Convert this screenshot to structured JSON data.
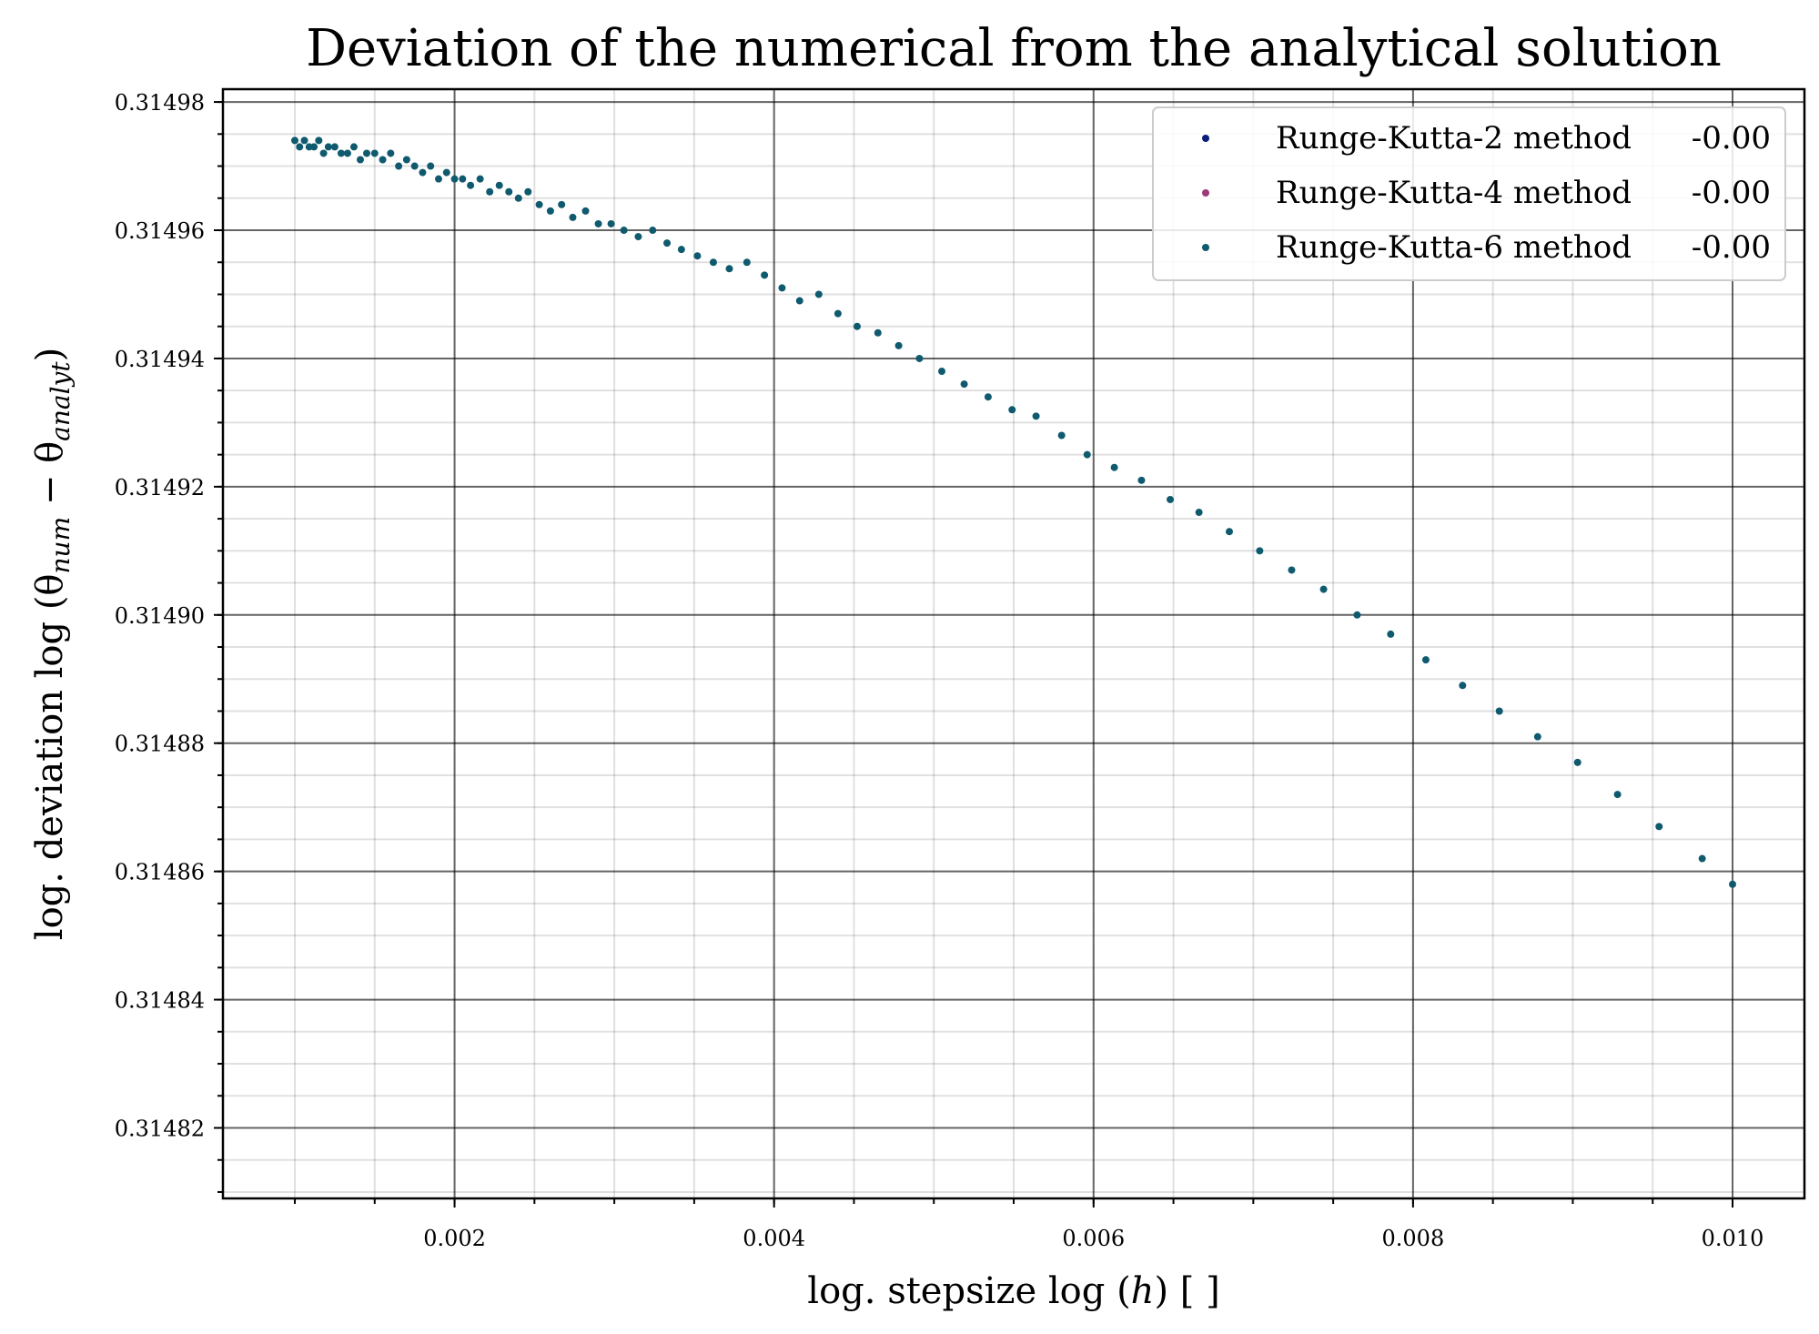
{
  "chart_data": {
    "type": "scatter",
    "title": "Deviation of the numerical from the analytical solution",
    "xlabel": "log. stepsize log (h) [ ]",
    "ylabel": "log. deviation log (θ_num − θ_analyt)",
    "ylabel_parts": {
      "prefix": "log. deviation log (θ",
      "sub1": "num",
      "middle": " − θ",
      "sub2": "analyt",
      "suffix": ")"
    },
    "xlabel_parts": {
      "prefix": "log. stepsize log (",
      "var": "h",
      "suffix": ") [ ]"
    },
    "xlim": [
      0.00055,
      0.01045
    ],
    "ylim": [
      0.314809,
      0.314982
    ],
    "x_ticks": [
      0.002,
      0.004,
      0.006,
      0.008,
      0.01
    ],
    "x_tick_labels": [
      "0.002",
      "0.004",
      "0.006",
      "0.008",
      "0.010"
    ],
    "y_ticks": [
      0.31482,
      0.31484,
      0.31486,
      0.31488,
      0.3149,
      0.31492,
      0.31494,
      0.31496,
      0.31498
    ],
    "y_tick_labels": [
      "0.31482",
      "0.31484",
      "0.31486",
      "0.31488",
      "0.31490",
      "0.31492",
      "0.31494",
      "0.31496",
      "0.31498"
    ],
    "grid": true,
    "legend_position": "top-right",
    "series": [
      {
        "name": "Runge-Kutta-2 method",
        "value_label": "-0.00",
        "color": "#0b1e7a",
        "x": [],
        "y": []
      },
      {
        "name": "Runge-Kutta-4 method",
        "value_label": "-0.00",
        "color": "#9b3a78",
        "x": [],
        "y": []
      },
      {
        "name": "Runge-Kutta-6 method",
        "value_label": "-0.00",
        "color": "#0f5a6e",
        "x": [
          0.001,
          0.00103,
          0.00106,
          0.00109,
          0.00112,
          0.00115,
          0.00118,
          0.00121,
          0.00125,
          0.00129,
          0.00133,
          0.00137,
          0.00141,
          0.00145,
          0.0015,
          0.00155,
          0.0016,
          0.00165,
          0.0017,
          0.00175,
          0.0018,
          0.00185,
          0.0019,
          0.00195,
          0.002,
          0.00205,
          0.0021,
          0.00216,
          0.00222,
          0.00228,
          0.00234,
          0.0024,
          0.00246,
          0.00253,
          0.0026,
          0.00267,
          0.00274,
          0.00282,
          0.0029,
          0.00298,
          0.00306,
          0.00315,
          0.00324,
          0.00333,
          0.00342,
          0.00352,
          0.00362,
          0.00372,
          0.00383,
          0.00394,
          0.00405,
          0.00416,
          0.00428,
          0.0044,
          0.00452,
          0.00465,
          0.00478,
          0.00491,
          0.00505,
          0.00519,
          0.00534,
          0.00549,
          0.00564,
          0.0058,
          0.00596,
          0.00613,
          0.0063,
          0.00648,
          0.00666,
          0.00685,
          0.00704,
          0.00724,
          0.00744,
          0.00765,
          0.00786,
          0.00808,
          0.00831,
          0.00854,
          0.00878,
          0.00903,
          0.00928,
          0.00954,
          0.00981,
          0.01
        ],
        "y": [
          0.314974,
          0.314973,
          0.314974,
          0.314973,
          0.314973,
          0.314974,
          0.314972,
          0.314973,
          0.314973,
          0.314972,
          0.314972,
          0.314973,
          0.314971,
          0.314972,
          0.314972,
          0.314971,
          0.314972,
          0.31497,
          0.314971,
          0.31497,
          0.314969,
          0.31497,
          0.314968,
          0.314969,
          0.314968,
          0.314968,
          0.314967,
          0.314968,
          0.314966,
          0.314967,
          0.314966,
          0.314965,
          0.314966,
          0.314964,
          0.314963,
          0.314964,
          0.314962,
          0.314963,
          0.314961,
          0.314961,
          0.31496,
          0.314959,
          0.31496,
          0.314958,
          0.314957,
          0.314956,
          0.314955,
          0.314954,
          0.314955,
          0.314953,
          0.314951,
          0.314949,
          0.31495,
          0.314947,
          0.314945,
          0.314944,
          0.314942,
          0.31494,
          0.314938,
          0.314936,
          0.314934,
          0.314932,
          0.314931,
          0.314928,
          0.314925,
          0.314923,
          0.314921,
          0.314918,
          0.314916,
          0.314913,
          0.31491,
          0.314907,
          0.314904,
          0.3149,
          0.314897,
          0.314893,
          0.314889,
          0.314885,
          0.314881,
          0.314877,
          0.314872,
          0.314867,
          0.314862,
          0.314858
        ]
      }
    ]
  }
}
